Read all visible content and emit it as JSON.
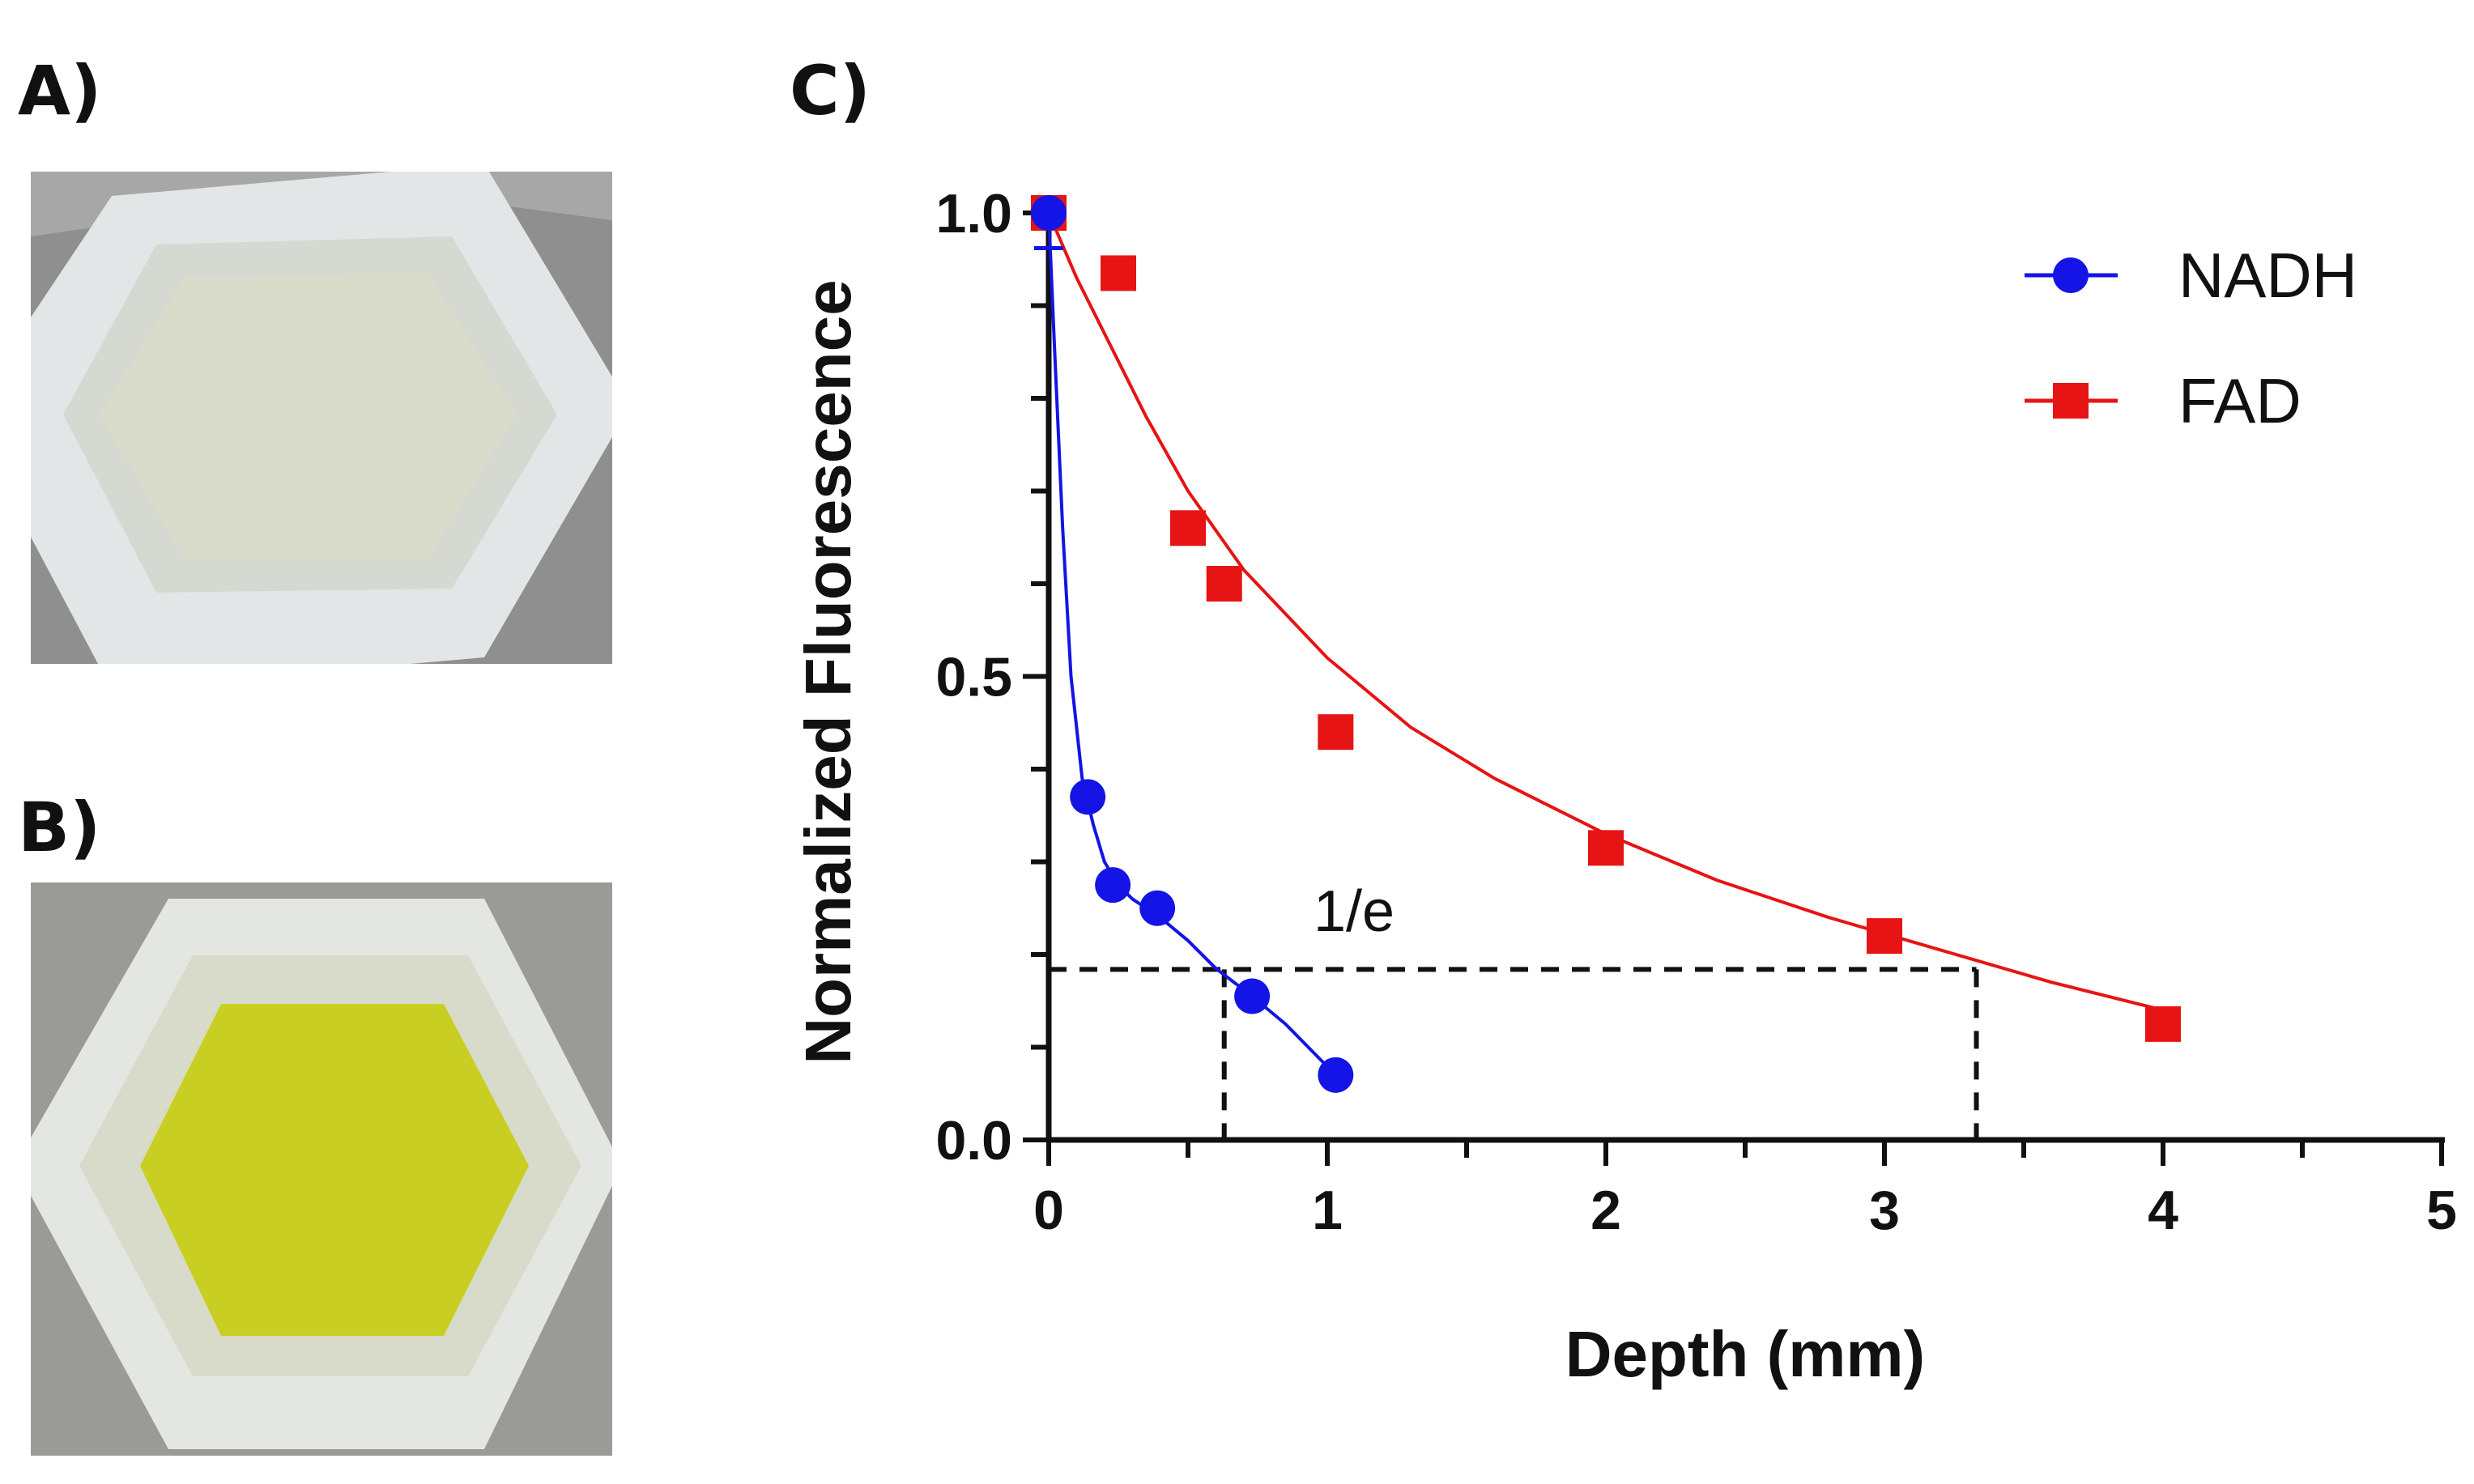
{
  "panels": {
    "a": "A)",
    "b": "B)",
    "c": "C)"
  },
  "photos": {
    "a": {
      "background": "#8f8f8f",
      "frame": "#e3e6e7",
      "inner": "#d6d8d2",
      "liquid": "#d9dccb"
    },
    "b": {
      "background": "#9a9b96",
      "frame": "#e4e6e2",
      "inner": "#d8dbc9",
      "liquid": "#c9cf22"
    }
  },
  "chart_data": {
    "type": "scatter",
    "xlabel": "Depth (mm)",
    "ylabel": "Normalized Fluorescence",
    "xlim": [
      0,
      5
    ],
    "ylim": [
      0,
      1
    ],
    "xticks": [
      "0",
      "1",
      "2",
      "3",
      "4",
      "5"
    ],
    "yticks": [
      "0.0",
      "0.5",
      "1.0"
    ],
    "legend_position": "top-right",
    "threshold": {
      "label": "1/e",
      "y": 0.184,
      "x_nadh": 0.63,
      "x_fad": 3.33
    },
    "series": [
      {
        "name": "NADH",
        "color": "#1414e6",
        "marker": "circle",
        "x": [
          0,
          0.14,
          0.23,
          0.39,
          0.73,
          1.03
        ],
        "y": [
          1.0,
          0.37,
          0.275,
          0.25,
          0.155,
          0.07
        ],
        "fit": {
          "x": [
            0,
            0.02,
            0.05,
            0.08,
            0.12,
            0.16,
            0.2,
            0.25,
            0.3,
            0.35,
            0.4,
            0.5,
            0.6,
            0.73,
            0.85,
            1.03
          ],
          "y": [
            1.0,
            0.86,
            0.66,
            0.5,
            0.39,
            0.34,
            0.3,
            0.275,
            0.26,
            0.25,
            0.24,
            0.215,
            0.185,
            0.155,
            0.125,
            0.07
          ]
        }
      },
      {
        "name": "FAD",
        "color": "#e61414",
        "marker": "square",
        "x": [
          0,
          0.25,
          0.5,
          0.63,
          1.03,
          2.0,
          3.0,
          4.0
        ],
        "y": [
          1.0,
          0.935,
          0.66,
          0.6,
          0.44,
          0.315,
          0.22,
          0.125
        ],
        "fit": {
          "x": [
            0,
            0.1,
            0.2,
            0.35,
            0.5,
            0.7,
            1.0,
            1.3,
            1.6,
            2.0,
            2.4,
            2.8,
            3.2,
            3.6,
            4.0
          ],
          "y": [
            1.0,
            0.93,
            0.87,
            0.78,
            0.7,
            0.615,
            0.52,
            0.445,
            0.39,
            0.33,
            0.28,
            0.24,
            0.205,
            0.17,
            0.14
          ]
        }
      }
    ]
  }
}
